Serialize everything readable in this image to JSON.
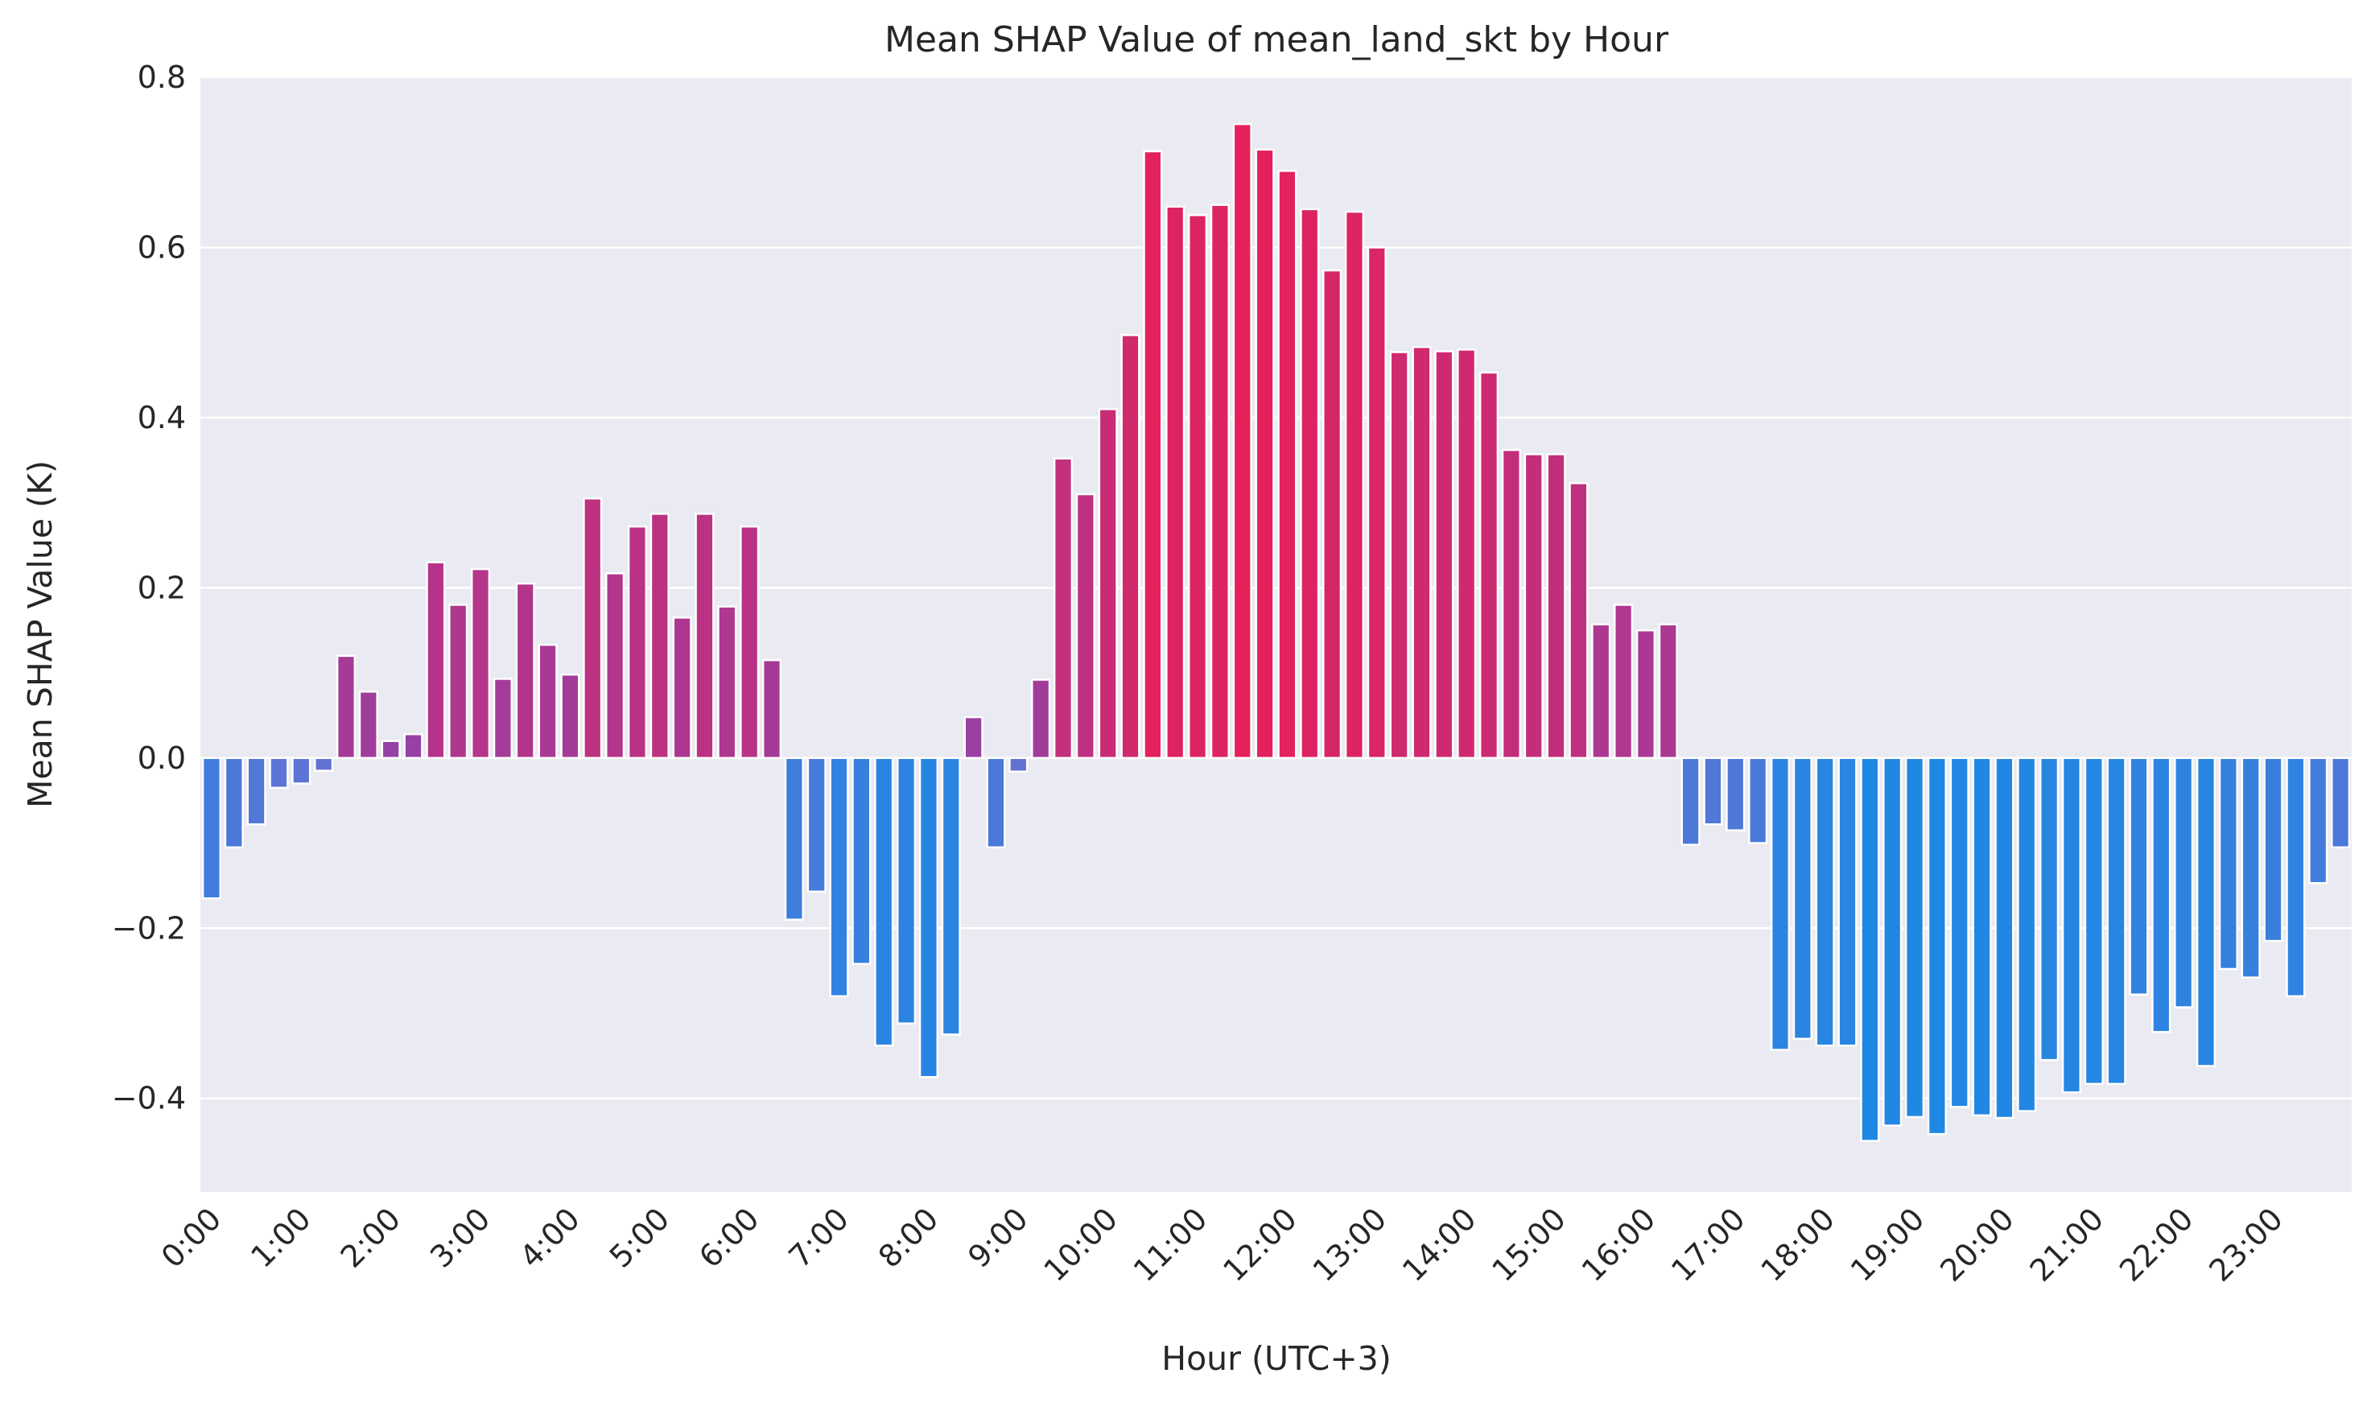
{
  "chart_data": {
    "type": "bar",
    "title": "Mean SHAP Value of mean_land_skt by Hour",
    "xlabel": "Hour (UTC+3)",
    "ylabel": "Mean SHAP Value (K)",
    "ylim": [
      -0.51,
      0.8
    ],
    "yticks": [
      -0.4,
      -0.2,
      0.0,
      0.2,
      0.4,
      0.6,
      0.8
    ],
    "ytick_labels": [
      "−0.4",
      "−0.2",
      "0.0",
      "0.2",
      "0.4",
      "0.6",
      "0.8"
    ],
    "xtick_labels": [
      "0:00",
      "1:00",
      "2:00",
      "3:00",
      "4:00",
      "5:00",
      "6:00",
      "7:00",
      "8:00",
      "9:00",
      "10:00",
      "11:00",
      "12:00",
      "13:00",
      "14:00",
      "15:00",
      "16:00",
      "17:00",
      "18:00",
      "19:00",
      "20:00",
      "21:00",
      "22:00",
      "23:00"
    ],
    "bars_per_hour": 4,
    "grid": true,
    "colors": {
      "background": "#eaeaf2",
      "grid": "#ffffff",
      "positive_peak": "#e6205a",
      "positive_low": "#8e44ad",
      "negative_peak": "#1e88e5",
      "negative_low": "#6c6fd0"
    },
    "values": [
      -0.165,
      -0.105,
      -0.078,
      -0.035,
      -0.03,
      -0.015,
      0.12,
      0.078,
      0.02,
      0.028,
      0.23,
      0.18,
      0.222,
      0.093,
      0.205,
      0.133,
      0.098,
      0.305,
      0.217,
      0.272,
      0.287,
      0.165,
      0.287,
      0.178,
      0.272,
      0.115,
      -0.19,
      -0.157,
      -0.28,
      -0.242,
      -0.338,
      -0.312,
      -0.375,
      -0.325,
      0.048,
      -0.105,
      -0.016,
      0.092,
      0.352,
      0.31,
      0.41,
      0.497,
      0.713,
      0.648,
      0.638,
      0.65,
      0.745,
      0.715,
      0.69,
      0.645,
      0.573,
      0.642,
      0.6,
      0.477,
      0.483,
      0.478,
      0.48,
      0.453,
      0.362,
      0.357,
      0.357,
      0.323,
      0.157,
      0.18,
      0.15,
      0.157,
      -0.102,
      -0.078,
      -0.085,
      -0.1,
      -0.343,
      -0.33,
      -0.338,
      -0.338,
      -0.45,
      -0.432,
      -0.422,
      -0.442,
      -0.41,
      -0.42,
      -0.423,
      -0.415,
      -0.355,
      -0.393,
      -0.383,
      -0.383,
      -0.278,
      -0.322,
      -0.293,
      -0.362,
      -0.248,
      -0.258,
      -0.215,
      -0.28,
      -0.147,
      -0.105
    ]
  }
}
